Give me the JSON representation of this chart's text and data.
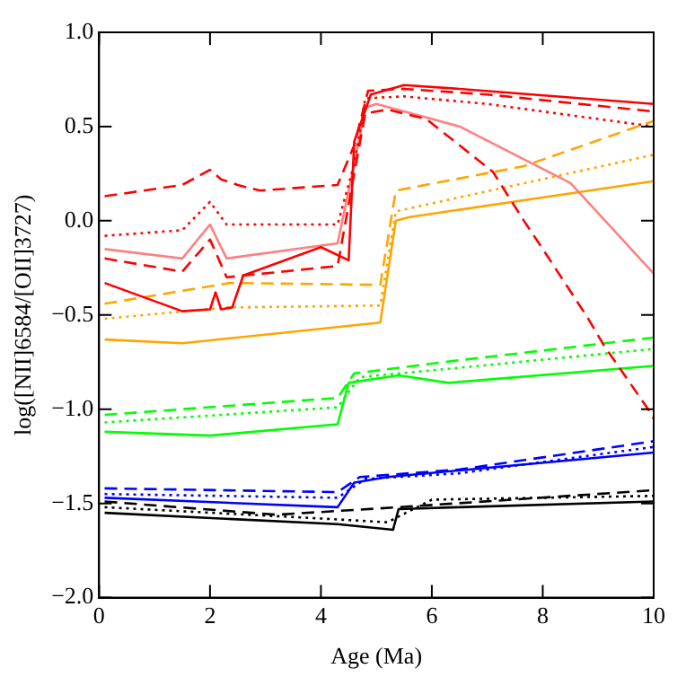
{
  "chart_data": {
    "type": "line",
    "xlabel": "Age (Ma)",
    "ylabel": "log([NII]6584/[OII]3727)",
    "xlim": [
      0,
      10
    ],
    "ylim": [
      -2.0,
      1.0
    ],
    "xticks": [
      0,
      2,
      4,
      6,
      8,
      10
    ],
    "yticks": [
      {
        "value": -2.0,
        "label": "−2.0"
      },
      {
        "value": -1.5,
        "label": "−1.5"
      },
      {
        "value": -1.0,
        "label": "−1.0"
      },
      {
        "value": -0.5,
        "label": "−0.5"
      },
      {
        "value": 0.0,
        "label": "0.0"
      },
      {
        "value": 0.5,
        "label": "0.5"
      },
      {
        "value": 1.0,
        "label": "1.0"
      }
    ],
    "grid": false,
    "legend": false,
    "marker": "none",
    "series": [
      {
        "color": "#ff0000",
        "line_style": "solid",
        "x": [
          0.1,
          1.5,
          2.0,
          2.1,
          2.2,
          2.4,
          2.6,
          4.0,
          4.5,
          4.6,
          4.9,
          5.5,
          6.5,
          10
        ],
        "values": [
          -0.33,
          -0.48,
          -0.47,
          -0.38,
          -0.47,
          -0.46,
          -0.29,
          -0.14,
          -0.21,
          0.42,
          0.67,
          0.72,
          0.7,
          0.62
        ]
      },
      {
        "color": "#ff0000",
        "line_style": "dashed",
        "x": [
          0.1,
          1.5,
          2.0,
          2.2,
          2.5,
          2.9,
          4.3,
          4.6,
          4.85,
          5.5,
          7,
          10
        ],
        "values": [
          0.13,
          0.19,
          0.27,
          0.22,
          0.19,
          0.16,
          0.19,
          0.4,
          0.69,
          0.7,
          0.67,
          0.58
        ]
      },
      {
        "color": "#ff0000",
        "line_style": "dotted",
        "x": [
          0.1,
          1.5,
          2.0,
          2.3,
          2.6,
          4.3,
          4.6,
          4.8,
          5.5,
          7,
          10
        ],
        "values": [
          -0.08,
          -0.05,
          0.1,
          -0.02,
          -0.02,
          -0.02,
          0.3,
          0.65,
          0.66,
          0.62,
          0.5
        ]
      },
      {
        "color": "#ff0000",
        "line_style": "dashed",
        "x": [
          0.1,
          1.5,
          2.0,
          2.3,
          4.3,
          4.6,
          4.8,
          5.2,
          5.9,
          7.1,
          7.66,
          8,
          8.8,
          9.1,
          9.9,
          10
        ],
        "values": [
          -0.2,
          -0.27,
          -0.1,
          -0.3,
          -0.24,
          0.25,
          0.57,
          0.59,
          0.54,
          0.26,
          0.0,
          -0.15,
          -0.51,
          -0.66,
          -1.0,
          -1.05
        ]
      },
      {
        "color": "#ff8080",
        "line_style": "solid",
        "x": [
          0.1,
          1.5,
          2.0,
          2.3,
          4.3,
          4.6,
          4.8,
          5.0,
          6.5,
          8.5,
          10
        ],
        "values": [
          -0.15,
          -0.2,
          -0.02,
          -0.2,
          -0.12,
          0.3,
          0.6,
          0.62,
          0.5,
          0.2,
          -0.28
        ]
      },
      {
        "color": "#ffa500",
        "line_style": "solid",
        "x": [
          0.1,
          1.5,
          5.07,
          5.35,
          5.6,
          10
        ],
        "values": [
          -0.63,
          -0.65,
          -0.54,
          0.0,
          0.02,
          0.21
        ]
      },
      {
        "color": "#ffa500",
        "line_style": "dashed",
        "x": [
          0.1,
          2.36,
          5.07,
          5.35,
          7.66,
          10
        ],
        "values": [
          -0.44,
          -0.33,
          -0.34,
          0.16,
          0.29,
          0.53
        ]
      },
      {
        "color": "#ffa500",
        "line_style": "dotted",
        "x": [
          0.1,
          2.3,
          5.07,
          5.35,
          10
        ],
        "values": [
          -0.52,
          -0.46,
          -0.45,
          0.05,
          0.35
        ]
      },
      {
        "color": "#00ff00",
        "line_style": "solid",
        "x": [
          0.1,
          2,
          4.3,
          4.5,
          5.4,
          6.3,
          10
        ],
        "values": [
          -1.12,
          -1.14,
          -1.08,
          -0.86,
          -0.82,
          -0.86,
          -0.77
        ]
      },
      {
        "color": "#00ff00",
        "line_style": "dashed",
        "x": [
          0.1,
          4.3,
          4.6,
          6.5,
          10
        ],
        "values": [
          -1.03,
          -0.94,
          -0.81,
          -0.74,
          -0.62
        ]
      },
      {
        "color": "#00ff00",
        "line_style": "dotted",
        "x": [
          0.1,
          4.3,
          4.7,
          6.5,
          10
        ],
        "values": [
          -1.07,
          -0.99,
          -0.83,
          -0.78,
          -0.68
        ]
      },
      {
        "color": "#0000ff",
        "line_style": "solid",
        "x": [
          0.1,
          4.3,
          4.6,
          5.2,
          10
        ],
        "values": [
          -1.47,
          -1.52,
          -1.39,
          -1.36,
          -1.23
        ]
      },
      {
        "color": "#0000ff",
        "line_style": "dashed",
        "x": [
          0.1,
          4.3,
          4.7,
          6.5,
          10
        ],
        "values": [
          -1.42,
          -1.44,
          -1.36,
          -1.32,
          -1.17
        ]
      },
      {
        "color": "#0000ff",
        "line_style": "dotted",
        "x": [
          0.1,
          4.3,
          4.8,
          6.5,
          10
        ],
        "values": [
          -1.45,
          -1.47,
          -1.37,
          -1.34,
          -1.2
        ]
      },
      {
        "color": "#000000",
        "line_style": "solid",
        "x": [
          0.1,
          4.3,
          5.3,
          5.4,
          6.5,
          10
        ],
        "values": [
          -1.55,
          -1.61,
          -1.64,
          -1.53,
          -1.52,
          -1.49
        ]
      },
      {
        "color": "#000000",
        "line_style": "dashed",
        "x": [
          0.1,
          3.2,
          5.4,
          10
        ],
        "values": [
          -1.49,
          -1.56,
          -1.52,
          -1.43
        ]
      },
      {
        "color": "#000000",
        "line_style": "dotted",
        "x": [
          0.1,
          4,
          5.2,
          6,
          10
        ],
        "values": [
          -1.52,
          -1.58,
          -1.6,
          -1.48,
          -1.46
        ]
      }
    ]
  }
}
